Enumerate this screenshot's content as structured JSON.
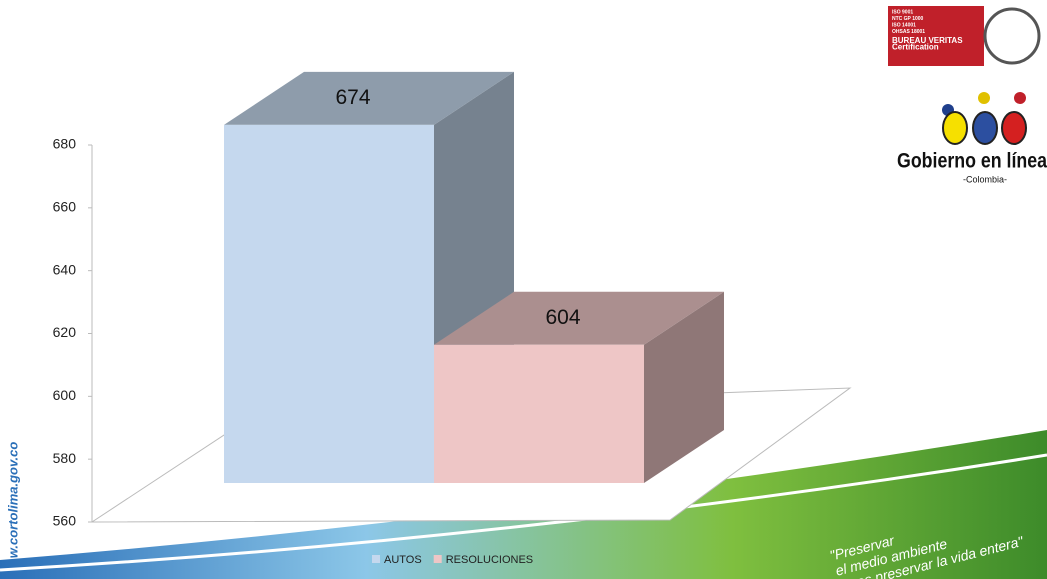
{
  "chart_data": {
    "type": "bar3d",
    "categories": [
      "AUTOS",
      "RESOLUCIONES"
    ],
    "values": [
      674,
      604
    ],
    "colors": [
      "#c5d8ee",
      "#eec6c6"
    ],
    "ylim": [
      560,
      680
    ],
    "yticks": [
      560,
      580,
      600,
      620,
      640,
      660,
      680
    ],
    "legend": "bottom"
  },
  "branding": {
    "website": "w.cortolima.gov.co",
    "certification": [
      "ISO 9001",
      "NTC GP 1000",
      "ISO 14001",
      "OHSAS 18001",
      "BUREAU VERITAS",
      "Certification"
    ],
    "gobierno": "Gobierno en línea",
    "country": "-Colombia-",
    "slogan": [
      "\"Preservar",
      "el medio ambiente",
      "es preservar la vida entera\""
    ]
  }
}
